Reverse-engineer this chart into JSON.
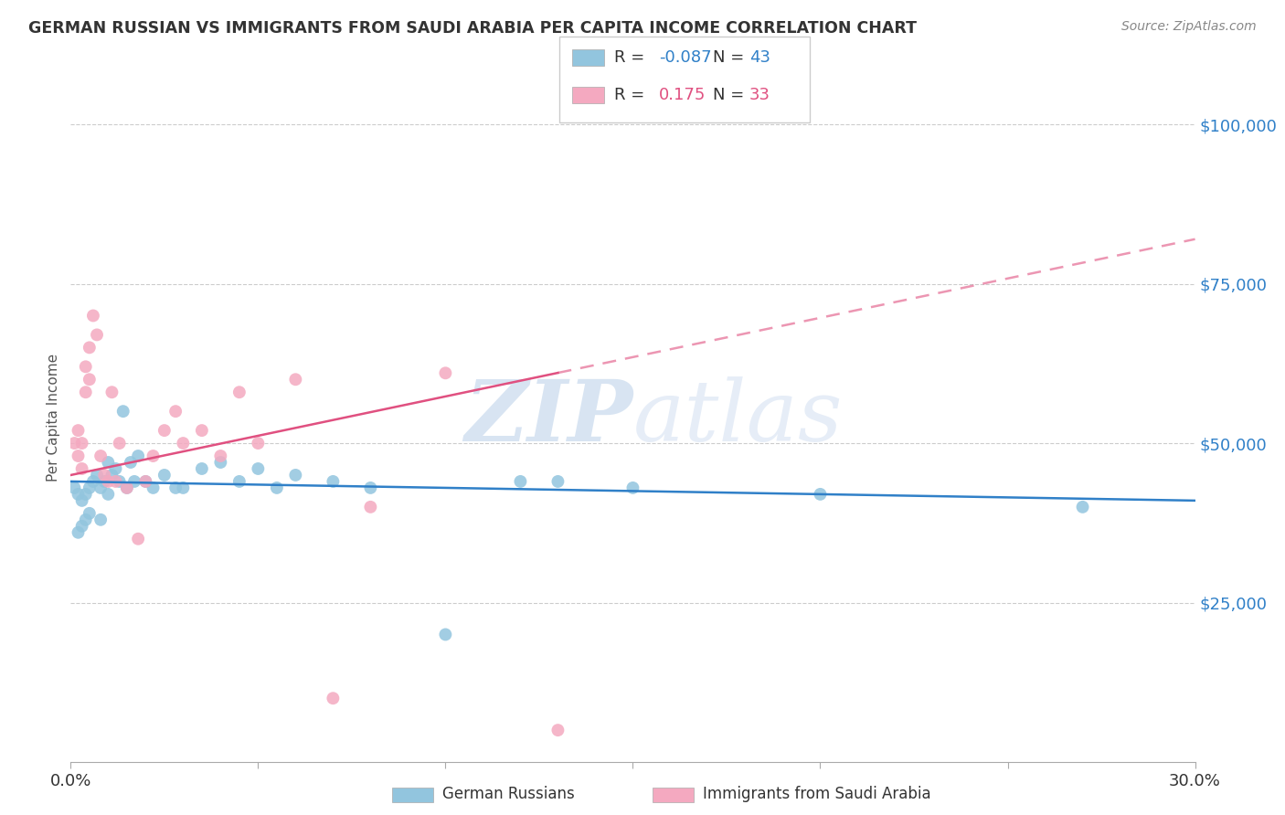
{
  "title": "GERMAN RUSSIAN VS IMMIGRANTS FROM SAUDI ARABIA PER CAPITA INCOME CORRELATION CHART",
  "source": "Source: ZipAtlas.com",
  "ylabel": "Per Capita Income",
  "watermark_zip": "ZIP",
  "watermark_atlas": "atlas",
  "legend_label1": "German Russians",
  "legend_label2": "Immigrants from Saudi Arabia",
  "r1": "-0.087",
  "n1": "43",
  "r2": "0.175",
  "n2": "33",
  "color_blue": "#92c5de",
  "color_pink": "#f4a9c0",
  "color_blue_line": "#3080c8",
  "color_pink_line": "#e05080",
  "color_blue_text": "#3080c8",
  "color_pink_text": "#e05080",
  "ytick_labels": [
    "$25,000",
    "$50,000",
    "$75,000",
    "$100,000"
  ],
  "ytick_values": [
    25000,
    50000,
    75000,
    100000
  ],
  "ymin": 0,
  "ymax": 108000,
  "xmin": 0.0,
  "xmax": 0.3,
  "blue_points_x": [
    0.001,
    0.002,
    0.002,
    0.003,
    0.003,
    0.004,
    0.004,
    0.005,
    0.005,
    0.006,
    0.007,
    0.008,
    0.008,
    0.009,
    0.01,
    0.01,
    0.011,
    0.012,
    0.013,
    0.014,
    0.015,
    0.016,
    0.017,
    0.018,
    0.02,
    0.022,
    0.025,
    0.028,
    0.03,
    0.035,
    0.04,
    0.045,
    0.05,
    0.055,
    0.06,
    0.07,
    0.08,
    0.1,
    0.12,
    0.13,
    0.15,
    0.2,
    0.27
  ],
  "blue_points_y": [
    43000,
    42000,
    36000,
    41000,
    37000,
    42000,
    38000,
    43000,
    39000,
    44000,
    45000,
    43000,
    38000,
    44000,
    47000,
    42000,
    45000,
    46000,
    44000,
    55000,
    43000,
    47000,
    44000,
    48000,
    44000,
    43000,
    45000,
    43000,
    43000,
    46000,
    47000,
    44000,
    46000,
    43000,
    45000,
    44000,
    43000,
    20000,
    44000,
    44000,
    43000,
    42000,
    40000
  ],
  "pink_points_x": [
    0.001,
    0.002,
    0.002,
    0.003,
    0.003,
    0.004,
    0.004,
    0.005,
    0.005,
    0.006,
    0.007,
    0.008,
    0.009,
    0.01,
    0.011,
    0.012,
    0.013,
    0.015,
    0.018,
    0.02,
    0.022,
    0.025,
    0.028,
    0.03,
    0.035,
    0.04,
    0.045,
    0.05,
    0.06,
    0.07,
    0.08,
    0.1,
    0.13
  ],
  "pink_points_y": [
    50000,
    52000,
    48000,
    50000,
    46000,
    62000,
    58000,
    65000,
    60000,
    70000,
    67000,
    48000,
    45000,
    44000,
    58000,
    44000,
    50000,
    43000,
    35000,
    44000,
    48000,
    52000,
    55000,
    50000,
    52000,
    48000,
    58000,
    50000,
    60000,
    10000,
    40000,
    61000,
    5000
  ]
}
